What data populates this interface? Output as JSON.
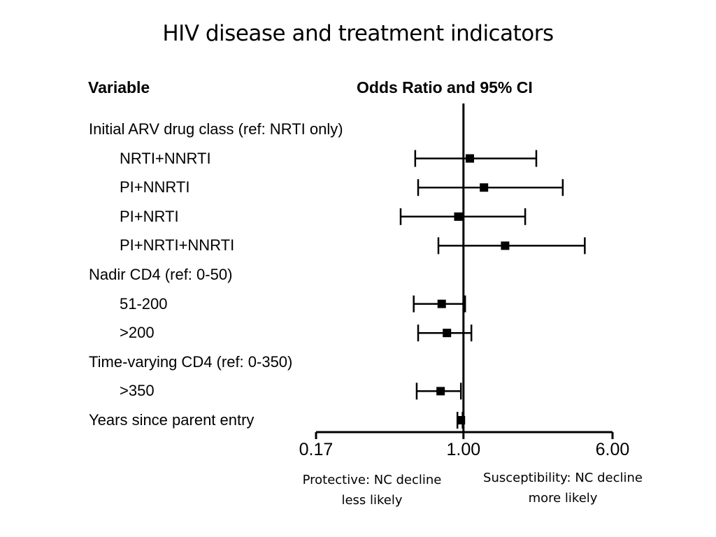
{
  "slide_title": "HIV disease and treatment indicators",
  "headers": {
    "variable": "Variable",
    "estimate": "Odds Ratio and 95% CI"
  },
  "rows": [
    {
      "label": "Initial ARV drug class (ref: NRTI only)",
      "indent": 0
    },
    {
      "label": "NRTI+NNRTI",
      "indent": 1
    },
    {
      "label": "PI+NNRTI",
      "indent": 1
    },
    {
      "label": "PI+NRTI",
      "indent": 1
    },
    {
      "label": "PI+NRTI+NNRTI",
      "indent": 1
    },
    {
      "label": "Nadir CD4 (ref: 0-50)",
      "indent": 0
    },
    {
      "label": "51-200",
      "indent": 1
    },
    {
      "label": ">200",
      "indent": 1
    },
    {
      "label": "Time-varying CD4 (ref: 0-350)",
      "indent": 0
    },
    {
      "label": ">350",
      "indent": 1
    },
    {
      "label": "Years since parent entry",
      "indent": 0
    }
  ],
  "chart_data": {
    "type": "forest",
    "x_scale": "log",
    "xlim": [
      0.17,
      6.0
    ],
    "x_ticks": [
      "0.17",
      "1.00",
      "6.00"
    ],
    "reference_line": 1.0,
    "points": [
      {
        "label": "NRTI+NNRTI",
        "or": 1.08,
        "lower": 0.56,
        "upper": 2.4
      },
      {
        "label": "PI+NNRTI",
        "or": 1.28,
        "lower": 0.58,
        "upper": 3.3
      },
      {
        "label": "PI+NRTI",
        "or": 0.94,
        "lower": 0.47,
        "upper": 2.1
      },
      {
        "label": "PI+NRTI+NNRTI",
        "or": 1.65,
        "lower": 0.74,
        "upper": 4.3
      },
      {
        "label": "51-200",
        "or": 0.77,
        "lower": 0.55,
        "upper": 1.02
      },
      {
        "label": ">200",
        "or": 0.82,
        "lower": 0.58,
        "upper": 1.1
      },
      {
        "label": ">350",
        "or": 0.76,
        "lower": 0.57,
        "upper": 0.97
      },
      {
        "label": "Years since parent entry",
        "or": 0.97,
        "lower": 0.93,
        "upper": 0.99
      }
    ]
  },
  "annotations": {
    "protective_line1": "Protective: NC decline",
    "protective_line2": "less likely",
    "susceptible_line1": "Susceptibility: NC decline",
    "susceptible_line2": "more likely"
  }
}
